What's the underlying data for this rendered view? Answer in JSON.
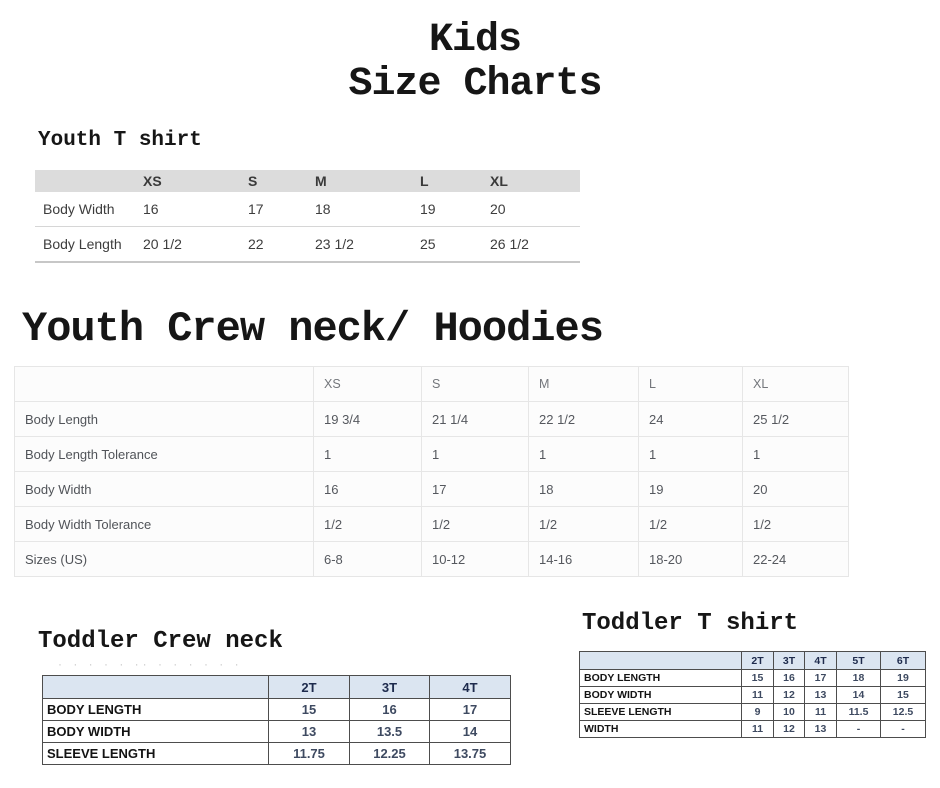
{
  "page": {
    "title_line1": "Kids",
    "title_line2": "Size Charts"
  },
  "sections": {
    "youth_tshirt": {
      "heading": "Youth T shirt",
      "columns": [
        "XS",
        "S",
        "M",
        "L",
        "XL"
      ],
      "rows": [
        {
          "label": "Body Width",
          "values": [
            "16",
            "17",
            "18",
            "19",
            "20"
          ]
        },
        {
          "label": "Body Length",
          "values": [
            "20 1/2",
            "22",
            "23 1/2",
            "25",
            "26 1/2"
          ]
        }
      ]
    },
    "youth_crew": {
      "heading": "Youth Crew neck/ Hoodies",
      "columns": [
        "XS",
        "S",
        "M",
        "L",
        "XL"
      ],
      "rows": [
        {
          "label": "Body Length",
          "values": [
            "19 3/4",
            "21 1/4",
            "22 1/2",
            "24",
            "25 1/2"
          ]
        },
        {
          "label": "Body Length Tolerance",
          "values": [
            "1",
            "1",
            "1",
            "1",
            "1"
          ]
        },
        {
          "label": "Body Width",
          "values": [
            "16",
            "17",
            "18",
            "19",
            "20"
          ]
        },
        {
          "label": "Body Width Tolerance",
          "values": [
            "1/2",
            "1/2",
            "1/2",
            "1/2",
            "1/2"
          ]
        },
        {
          "label": "Sizes (US)",
          "values": [
            "6-8",
            "10-12",
            "14-16",
            "18-20",
            "22-24"
          ]
        }
      ]
    },
    "toddler_crew": {
      "heading": "Toddler Crew neck",
      "artifact_dots": "· · · · · ·· ·  · · · ·  ·",
      "columns": [
        "2T",
        "3T",
        "4T"
      ],
      "rows": [
        {
          "label": "BODY LENGTH",
          "values": [
            "15",
            "16",
            "17"
          ]
        },
        {
          "label": "BODY WIDTH",
          "values": [
            "13",
            "13.5",
            "14"
          ]
        },
        {
          "label": "SLEEVE LENGTH",
          "values": [
            "11.75",
            "12.25",
            "13.75"
          ]
        }
      ]
    },
    "toddler_tshirt": {
      "heading": "Toddler T shirt",
      "columns": [
        "2T",
        "3T",
        "4T",
        "5T",
        "6T"
      ],
      "rows": [
        {
          "label": "BODY LENGTH",
          "values": [
            "15",
            "16",
            "17",
            "18",
            "19"
          ]
        },
        {
          "label": "BODY WIDTH",
          "values": [
            "11",
            "12",
            "13",
            "14",
            "15"
          ]
        },
        {
          "label": "SLEEVE LENGTH",
          "values": [
            "9",
            "10",
            "11",
            "11.5",
            "12.5"
          ]
        },
        {
          "label": "WIDTH",
          "values": [
            "11",
            "12",
            "13",
            "-",
            "-"
          ]
        }
      ]
    }
  }
}
